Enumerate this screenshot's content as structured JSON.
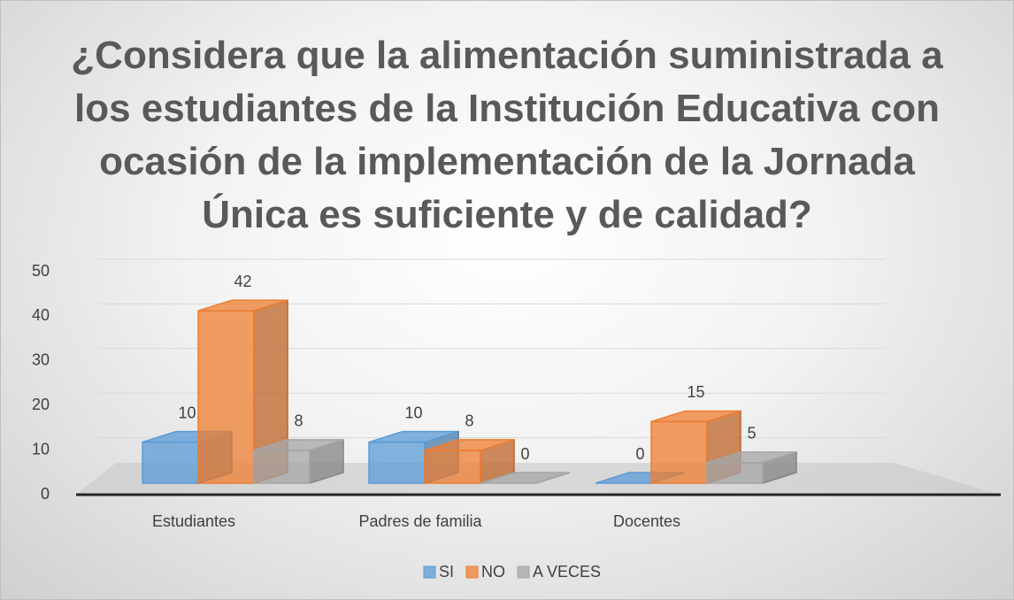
{
  "chart_data": {
    "type": "bar3d",
    "title": "¿Considera que la alimentación suministrada a los estudiantes de la Institución Educativa con ocasión de la implementación de la Jornada Única es suficiente y de calidad?",
    "categories": [
      "Estudiantes",
      "Padres de familia",
      "Docentes"
    ],
    "series": [
      {
        "name": "SI",
        "color": "#5b9bd5",
        "values": [
          10,
          10,
          0
        ]
      },
      {
        "name": "NO",
        "color": "#ed7d31",
        "values": [
          42,
          8,
          15
        ]
      },
      {
        "name": "A VECES",
        "color": "#a5a5a5",
        "values": [
          8,
          0,
          5
        ]
      }
    ],
    "ylim": [
      0,
      50
    ],
    "yticks": [
      0,
      10,
      20,
      30,
      40,
      50
    ],
    "grid": true,
    "legend": "bottom"
  }
}
